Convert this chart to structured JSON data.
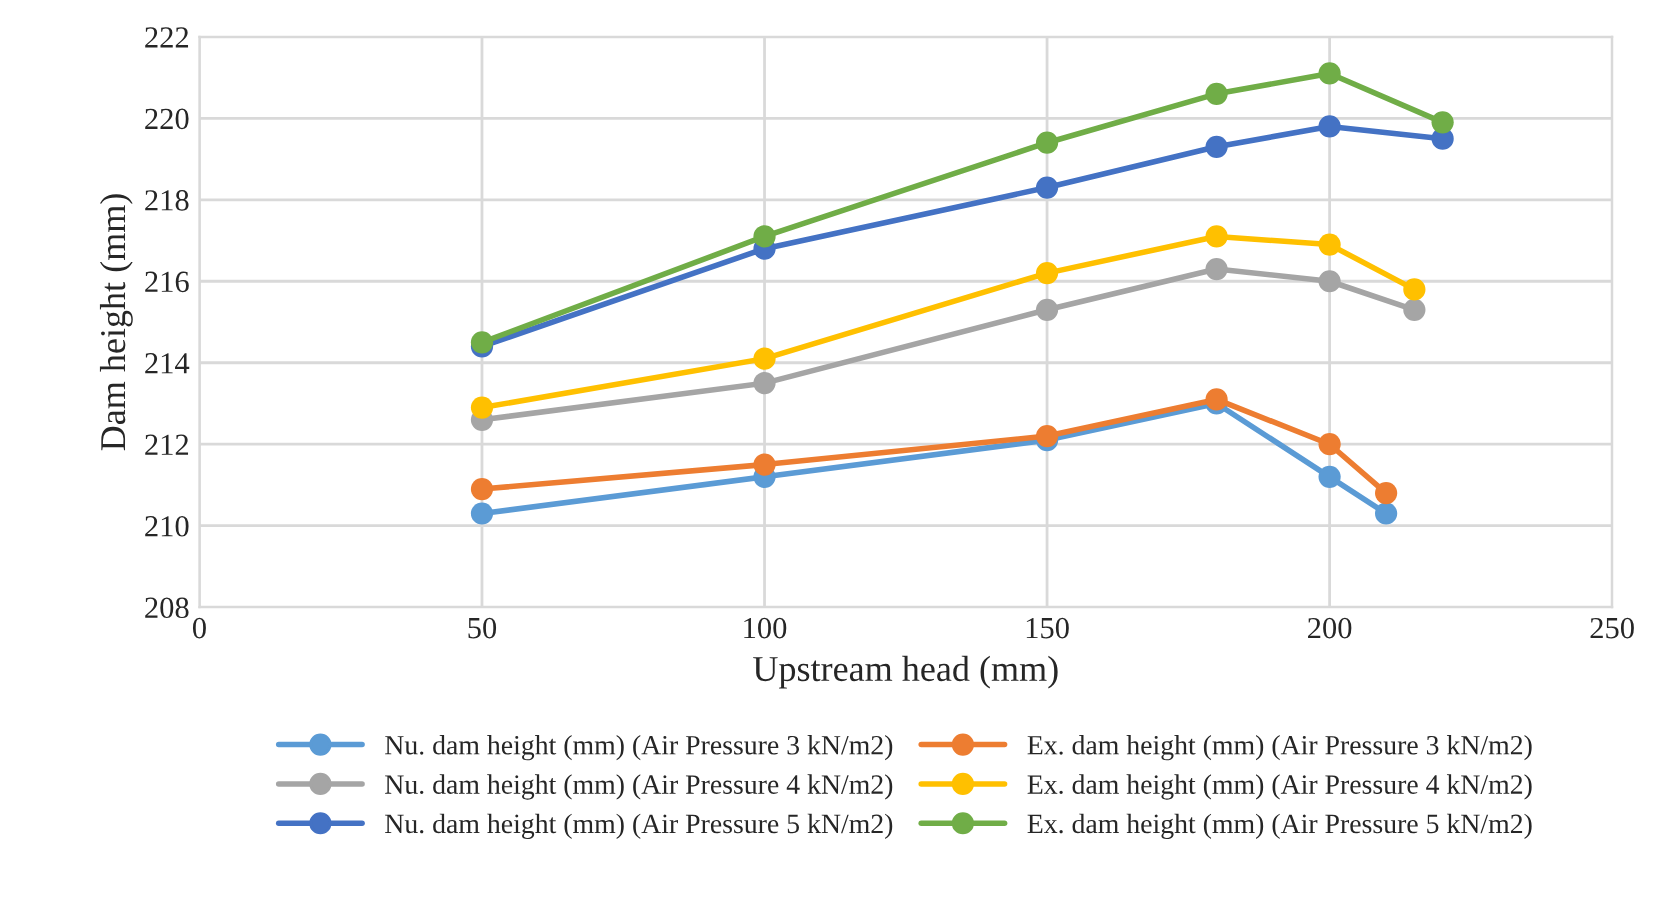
{
  "chart_data": {
    "type": "line",
    "xlabel": "Upstream head (mm)",
    "ylabel": "Dam height (mm)",
    "xlim": [
      0,
      250
    ],
    "xticks": [
      0,
      50,
      100,
      150,
      200,
      250
    ],
    "ylim": [
      208,
      222
    ],
    "yticks": [
      208,
      210,
      212,
      214,
      216,
      218,
      220,
      222
    ],
    "grid": true,
    "legend": "bottom",
    "marker": "circle",
    "line_style": "solid",
    "series": [
      {
        "name": "Nu. dam height (mm) (Air Pressure 3 kN/m2)",
        "color": "#5b9bd5",
        "x": [
          50,
          100,
          150,
          180,
          200,
          210
        ],
        "values": [
          210.3,
          211.2,
          212.1,
          213.0,
          211.2,
          210.3
        ]
      },
      {
        "name": "Ex. dam height (mm) (Air Pressure 3 kN/m2)",
        "color": "#ed7d31",
        "x": [
          50,
          100,
          150,
          180,
          200,
          210
        ],
        "values": [
          210.9,
          211.5,
          212.2,
          213.1,
          212.0,
          210.8
        ]
      },
      {
        "name": "Nu. dam height (mm) (Air Pressure 4 kN/m2)",
        "color": "#a5a5a5",
        "x": [
          50,
          100,
          150,
          180,
          200,
          215
        ],
        "values": [
          212.6,
          213.5,
          215.3,
          216.3,
          216.0,
          215.3
        ]
      },
      {
        "name": "Ex. dam height (mm) (Air Pressure 4 kN/m2)",
        "color": "#ffc000",
        "x": [
          50,
          100,
          150,
          180,
          200,
          215
        ],
        "values": [
          212.9,
          214.1,
          216.2,
          217.1,
          216.9,
          215.8
        ]
      },
      {
        "name": "Nu. dam height (mm) (Air Pressure 5 kN/m2)",
        "color": "#4472c4",
        "x": [
          50,
          100,
          150,
          180,
          200,
          220
        ],
        "values": [
          214.4,
          216.8,
          218.3,
          219.3,
          219.8,
          219.5
        ]
      },
      {
        "name": "Ex. dam height (mm) (Air Pressure 5 kN/m2)",
        "color": "#70ad47",
        "x": [
          50,
          100,
          150,
          180,
          200,
          220
        ],
        "values": [
          214.5,
          217.1,
          219.4,
          220.6,
          221.1,
          219.9
        ]
      }
    ]
  }
}
